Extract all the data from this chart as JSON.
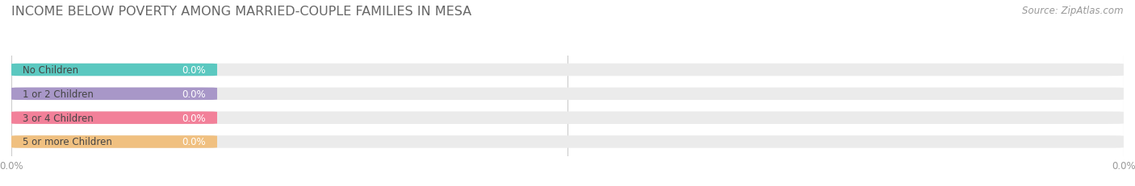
{
  "title": "INCOME BELOW POVERTY AMONG MARRIED-COUPLE FAMILIES IN MESA",
  "source": "Source: ZipAtlas.com",
  "categories": [
    "No Children",
    "1 or 2 Children",
    "3 or 4 Children",
    "5 or more Children"
  ],
  "values": [
    0.0,
    0.0,
    0.0,
    0.0
  ],
  "bar_colors": [
    "#5BC8C0",
    "#A897C8",
    "#F28099",
    "#F0C080"
  ],
  "bar_bg_color": "#EBEBEB",
  "background_color": "#FFFFFF",
  "title_fontsize": 11.5,
  "label_fontsize": 8.5,
  "tick_fontsize": 8.5,
  "source_fontsize": 8.5,
  "value_label": "0.0%"
}
